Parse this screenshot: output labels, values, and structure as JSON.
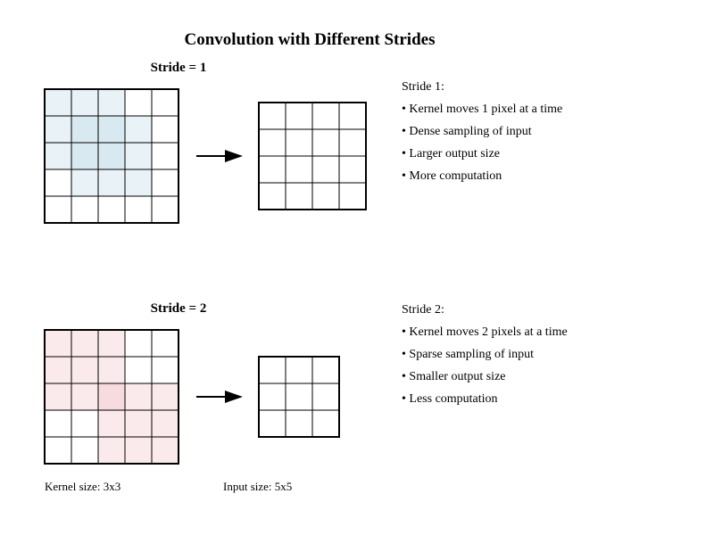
{
  "title": "Convolution with Different Strides",
  "colors": {
    "stride1_accent": "#5b5fc7",
    "stride1_fill": "#b7d3e6",
    "stride2_accent": "#d9534f",
    "stride2_fill": "#f3b8c0",
    "grid": "#000000",
    "text": "#000000"
  },
  "stride1": {
    "label": "Stride = 1",
    "stride": 1,
    "input_size": 5,
    "kernel_size": 3,
    "output_size": 3,
    "output_grid_size": 4,
    "kernel_border": "solid",
    "windows": [
      {
        "row": 0,
        "col": 0
      },
      {
        "row": 1,
        "col": 1
      }
    ],
    "desc_heading": "Stride 1:",
    "bullets": [
      "• Kernel moves 1 pixel at a time",
      "• Dense sampling of input",
      "• Larger output size",
      "• More computation"
    ]
  },
  "stride2": {
    "label": "Stride = 2",
    "stride": 2,
    "input_size": 5,
    "kernel_size": 3,
    "output_size": 2,
    "output_grid_size": 3,
    "kernel_border": "dashed",
    "windows": [
      {
        "row": 0,
        "col": 0
      },
      {
        "row": 2,
        "col": 2
      }
    ],
    "desc_heading": "Stride 2:",
    "bullets": [
      "• Kernel moves 2 pixels at a time",
      "• Sparse sampling of input",
      "• Smaller output size",
      "• Less computation"
    ]
  },
  "footer": {
    "kernel_size": "Kernel size: 3x3",
    "input_size": "Input size: 5x5"
  }
}
